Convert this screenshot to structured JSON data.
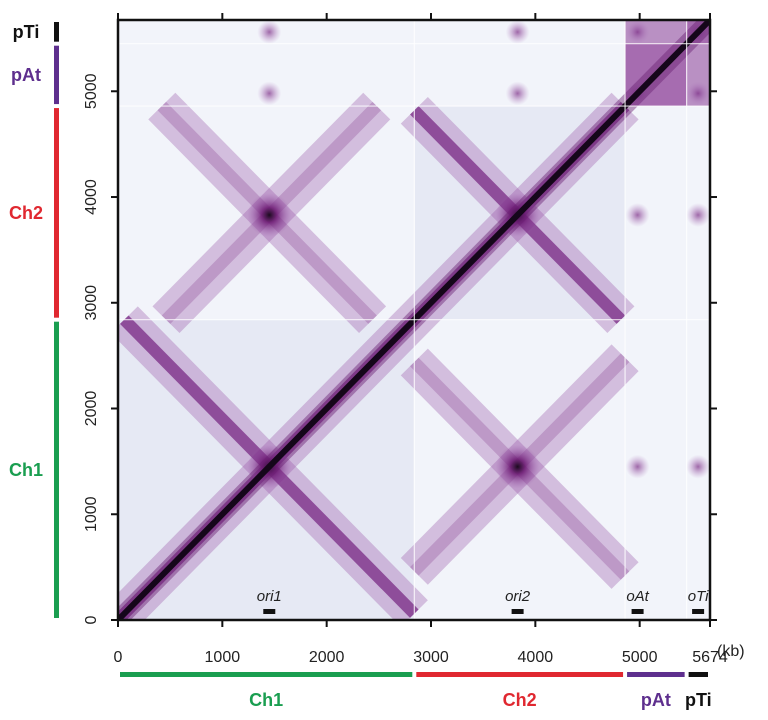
{
  "chart_data": {
    "type": "heatmap",
    "title": "",
    "genome_length_kb": 5674,
    "x_ticks": [
      "0",
      "1000",
      "2000",
      "3000",
      "4000",
      "5000",
      "5674"
    ],
    "x_tick_values": [
      0,
      1000,
      2000,
      3000,
      4000,
      5000,
      5674
    ],
    "y_ticks": [
      "0",
      "1000",
      "2000",
      "3000",
      "4000",
      "5000"
    ],
    "y_tick_values": [
      0,
      1000,
      2000,
      3000,
      4000,
      5000
    ],
    "x_unit": "(kb)",
    "xlim": [
      0,
      5674
    ],
    "ylim": [
      0,
      5674
    ],
    "replicons": [
      {
        "name": "Ch1",
        "start": 0,
        "end": 2840,
        "color": "#1a9e50"
      },
      {
        "name": "Ch2",
        "start": 2840,
        "end": 4860,
        "color": "#e02830"
      },
      {
        "name": "pAt",
        "start": 4860,
        "end": 5450,
        "color": "#5e2f8e"
      },
      {
        "name": "pTi",
        "start": 5450,
        "end": 5674,
        "color": "#111111"
      }
    ],
    "origins": [
      {
        "label": "ori1",
        "position": 1450
      },
      {
        "label": "ori2",
        "position": 3830
      },
      {
        "label": "oAt",
        "position": 4980
      },
      {
        "label": "oTi",
        "position": 5560
      }
    ],
    "colormap": {
      "low": "#f4f6fb",
      "mid": "#b27ec0",
      "high": "#7a1a7e",
      "max": "#0c0410"
    }
  }
}
